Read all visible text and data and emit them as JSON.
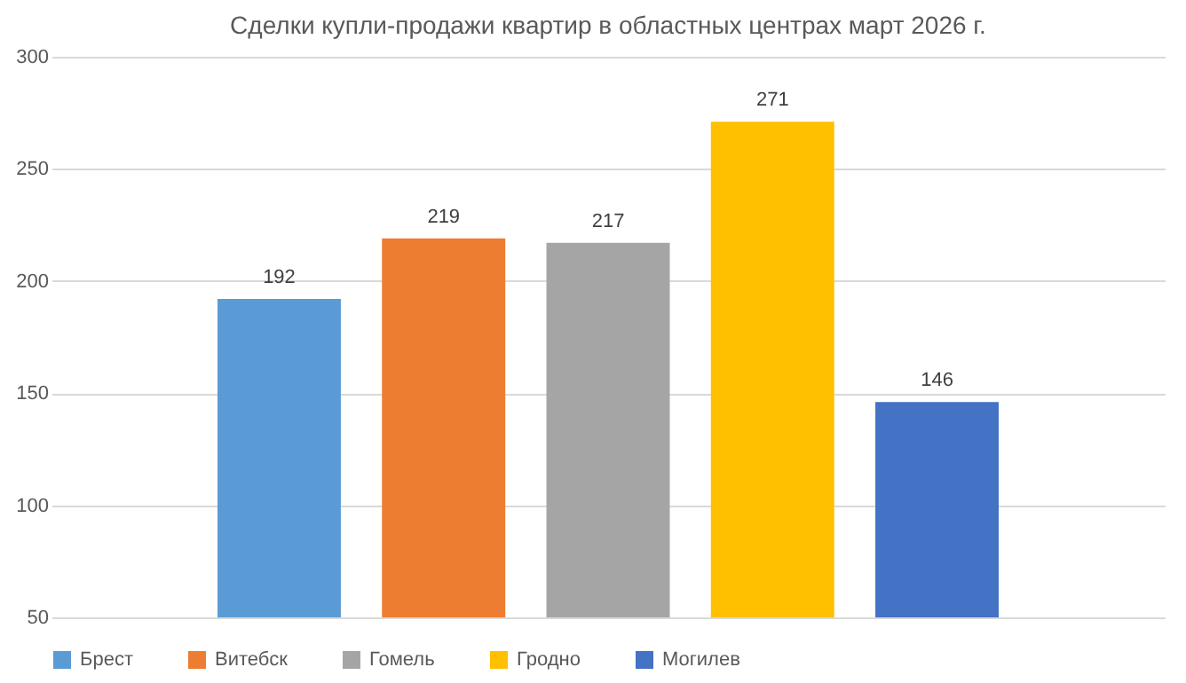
{
  "chart_data": {
    "type": "bar",
    "title": "Сделки купли-продажи квартир в областных центрах март 2026 г.",
    "categories": [
      null
    ],
    "series": [
      {
        "name": "Брест",
        "color": "#5b9bd5",
        "values": [
          192
        ]
      },
      {
        "name": "Витебск",
        "color": "#ed7d31",
        "values": [
          219
        ]
      },
      {
        "name": "Гомель",
        "color": "#a5a5a5",
        "values": [
          217
        ]
      },
      {
        "name": "Гродно",
        "color": "#ffc000",
        "values": [
          271
        ]
      },
      {
        "name": "Могилев",
        "color": "#4472c4",
        "values": [
          146
        ]
      }
    ],
    "ylim": [
      50,
      300
    ],
    "yticks": [
      50,
      100,
      150,
      200,
      250,
      300
    ],
    "grid": "y",
    "legend": "bottom",
    "data_labels": true,
    "tick_labels": "y"
  }
}
